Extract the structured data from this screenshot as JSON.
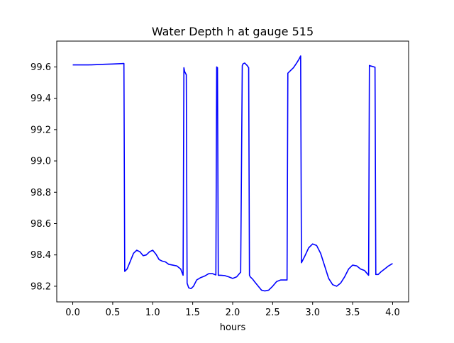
{
  "chart_data": {
    "type": "line",
    "title": "Water Depth h at gauge 515",
    "xlabel": "hours",
    "ylabel": "",
    "xlim": [
      -0.2,
      4.2
    ],
    "ylim": [
      98.1,
      99.765
    ],
    "xticks": [
      0.0,
      0.5,
      1.0,
      1.5,
      2.0,
      2.5,
      3.0,
      3.5,
      4.0
    ],
    "xtick_labels": [
      "0.0",
      "0.5",
      "1.0",
      "1.5",
      "2.0",
      "2.5",
      "3.0",
      "3.5",
      "4.0"
    ],
    "yticks": [
      98.2,
      98.4,
      98.6,
      98.8,
      99.0,
      99.2,
      99.4,
      99.6
    ],
    "ytick_labels": [
      "98.2",
      "98.4",
      "98.6",
      "98.8",
      "99.0",
      "99.2",
      "99.4",
      "99.6"
    ],
    "grid": false,
    "series": [
      {
        "color": "#0000ff",
        "x": [
          0.0,
          0.1,
          0.2,
          0.3,
          0.4,
          0.5,
          0.6,
          0.64,
          0.65,
          0.68,
          0.72,
          0.76,
          0.8,
          0.84,
          0.88,
          0.92,
          0.96,
          1.0,
          1.04,
          1.08,
          1.12,
          1.16,
          1.2,
          1.25,
          1.3,
          1.35,
          1.38,
          1.39,
          1.4,
          1.42,
          1.43,
          1.45,
          1.48,
          1.51,
          1.55,
          1.6,
          1.65,
          1.7,
          1.75,
          1.79,
          1.8,
          1.81,
          1.82,
          1.85,
          1.9,
          1.95,
          2.0,
          2.05,
          2.1,
          2.12,
          2.13,
          2.15,
          2.18,
          2.2,
          2.21,
          2.22,
          2.25,
          2.28,
          2.32,
          2.36,
          2.4,
          2.45,
          2.5,
          2.55,
          2.6,
          2.65,
          2.68,
          2.69,
          2.72,
          2.76,
          2.8,
          2.83,
          2.85,
          2.86,
          2.9,
          2.95,
          3.0,
          3.05,
          3.1,
          3.15,
          3.2,
          3.25,
          3.3,
          3.35,
          3.4,
          3.45,
          3.5,
          3.55,
          3.6,
          3.65,
          3.7,
          3.71,
          3.72,
          3.75,
          3.77,
          3.78,
          3.79,
          3.82,
          3.85,
          3.9,
          3.95,
          4.0
        ],
        "y": [
          99.613,
          99.613,
          99.613,
          99.615,
          99.617,
          99.619,
          99.621,
          99.622,
          98.295,
          98.31,
          98.36,
          98.41,
          98.43,
          98.42,
          98.395,
          98.4,
          98.42,
          98.43,
          98.405,
          98.37,
          98.36,
          98.355,
          98.34,
          98.335,
          98.33,
          98.31,
          98.27,
          99.595,
          99.57,
          99.55,
          98.22,
          98.19,
          98.185,
          98.2,
          98.24,
          98.255,
          98.265,
          98.28,
          98.28,
          98.272,
          99.6,
          99.595,
          98.27,
          98.27,
          98.268,
          98.26,
          98.25,
          98.26,
          98.29,
          99.608,
          99.62,
          99.625,
          99.61,
          99.595,
          98.27,
          98.26,
          98.245,
          98.225,
          98.2,
          98.175,
          98.17,
          98.175,
          98.2,
          98.23,
          98.24,
          98.24,
          98.24,
          99.56,
          99.575,
          99.595,
          99.625,
          99.65,
          99.67,
          98.35,
          98.39,
          98.445,
          98.47,
          98.46,
          98.41,
          98.33,
          98.25,
          98.21,
          98.2,
          98.22,
          98.26,
          98.31,
          98.335,
          98.33,
          98.31,
          98.3,
          98.27,
          99.61,
          99.607,
          99.603,
          99.6,
          99.598,
          98.275,
          98.275,
          98.29,
          98.31,
          98.33,
          98.345
        ]
      }
    ]
  }
}
